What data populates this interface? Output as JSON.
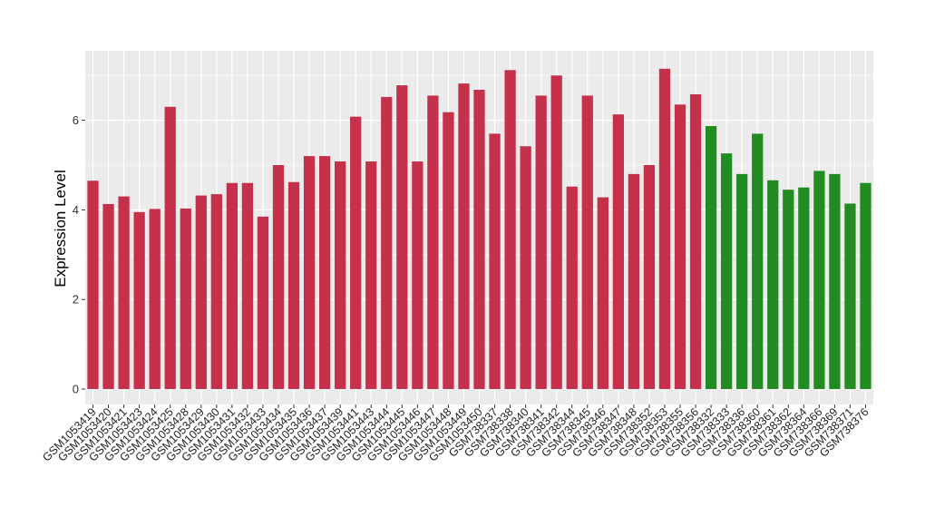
{
  "chart_data": {
    "type": "bar",
    "title": "",
    "xlabel": "",
    "ylabel": "Expression Level",
    "ylim": [
      0,
      7.2
    ],
    "yticks": [
      0,
      2,
      4,
      6
    ],
    "grid": true,
    "legend": "none",
    "colors": {
      "group1": "#c5304b",
      "group2": "#228b22",
      "panel": "#ebebeb",
      "grid": "#ffffff"
    },
    "categories": [
      "GSM1053419",
      "GSM1053420",
      "GSM1053421",
      "GSM1053423",
      "GSM1053424",
      "GSM1053425",
      "GSM1053428",
      "GSM1053429",
      "GSM1053430",
      "GSM1053431",
      "GSM1053432",
      "GSM1053433",
      "GSM1053434",
      "GSM1053435",
      "GSM1053436",
      "GSM1053437",
      "GSM1053439",
      "GSM1053441",
      "GSM1053443",
      "GSM1053444",
      "GSM1053445",
      "GSM1053446",
      "GSM1053447",
      "GSM1053448",
      "GSM1053449",
      "GSM1053450",
      "GSM738337",
      "GSM738338",
      "GSM738340",
      "GSM738341",
      "GSM738342",
      "GSM738344",
      "GSM738345",
      "GSM738346",
      "GSM738347",
      "GSM738348",
      "GSM738352",
      "GSM738353",
      "GSM738355",
      "GSM738356",
      "GSM738332",
      "GSM738333",
      "GSM738336",
      "GSM738360",
      "GSM738361",
      "GSM738362",
      "GSM738364",
      "GSM738366",
      "GSM738369",
      "GSM738371",
      "GSM738376"
    ],
    "values": [
      4.65,
      4.13,
      4.3,
      3.95,
      4.02,
      6.3,
      4.03,
      4.32,
      4.35,
      4.6,
      4.6,
      3.85,
      5.0,
      4.62,
      5.2,
      5.2,
      5.08,
      6.08,
      5.08,
      6.52,
      6.78,
      5.08,
      6.55,
      6.18,
      6.82,
      6.68,
      5.7,
      7.12,
      5.42,
      6.55,
      7.0,
      4.52,
      6.55,
      4.28,
      6.13,
      4.8,
      5.0,
      7.15,
      6.35,
      6.58,
      5.87,
      5.26,
      4.8,
      5.7,
      4.66,
      4.45,
      4.5,
      4.87,
      4.8,
      4.14,
      4.6
    ],
    "groups": [
      "group1",
      "group1",
      "group1",
      "group1",
      "group1",
      "group1",
      "group1",
      "group1",
      "group1",
      "group1",
      "group1",
      "group1",
      "group1",
      "group1",
      "group1",
      "group1",
      "group1",
      "group1",
      "group1",
      "group1",
      "group1",
      "group1",
      "group1",
      "group1",
      "group1",
      "group1",
      "group1",
      "group1",
      "group1",
      "group1",
      "group1",
      "group1",
      "group1",
      "group1",
      "group1",
      "group1",
      "group1",
      "group1",
      "group1",
      "group1",
      "group2",
      "group2",
      "group2",
      "group2",
      "group2",
      "group2",
      "group2",
      "group2",
      "group2",
      "group2",
      "group2"
    ]
  }
}
